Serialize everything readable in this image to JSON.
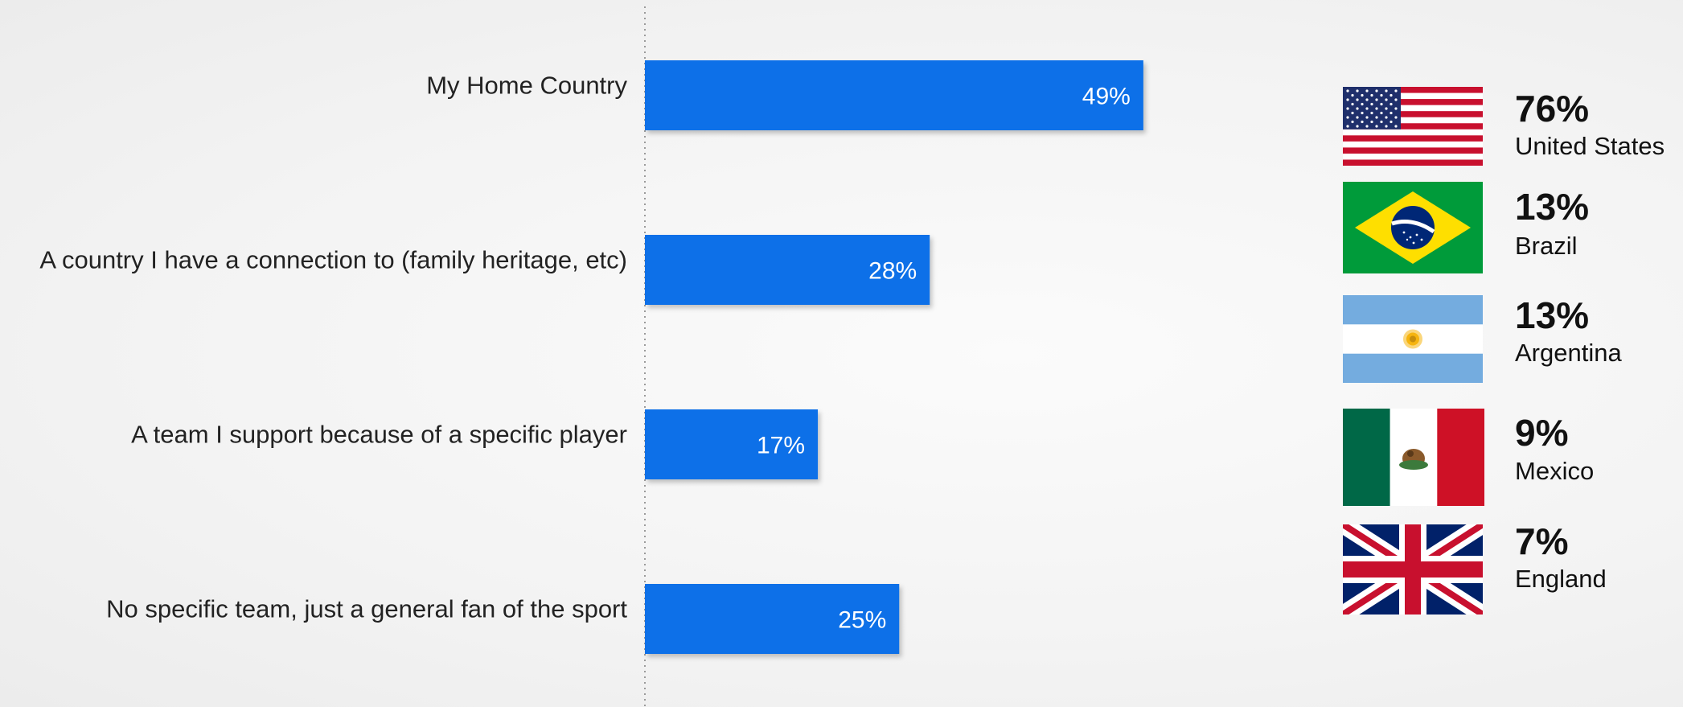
{
  "chart_data": {
    "type": "bar",
    "orientation": "horizontal",
    "categories": [
      "My Home Country",
      "A country I have a connection to (family heritage, etc)",
      "A team I support because of a specific player",
      "No specific team, just a general fan of the sport"
    ],
    "values": [
      49,
      28,
      17,
      25
    ],
    "value_labels": [
      "49%",
      "28%",
      "17%",
      "25%"
    ],
    "xlim": [
      0,
      100
    ],
    "bar_color": "#0870e8",
    "grid": false
  },
  "countries": [
    {
      "value": "76%",
      "name": "United States",
      "flag_icon": "us-flag-icon"
    },
    {
      "value": "13%",
      "name": "Brazil",
      "flag_icon": "brazil-flag-icon"
    },
    {
      "value": "13%",
      "name": "Argentina",
      "flag_icon": "argentina-flag-icon"
    },
    {
      "value": "9%",
      "name": "Mexico",
      "flag_icon": "mexico-flag-icon"
    },
    {
      "value": "7%",
      "name": "England",
      "flag_icon": "uk-flag-icon"
    }
  ]
}
